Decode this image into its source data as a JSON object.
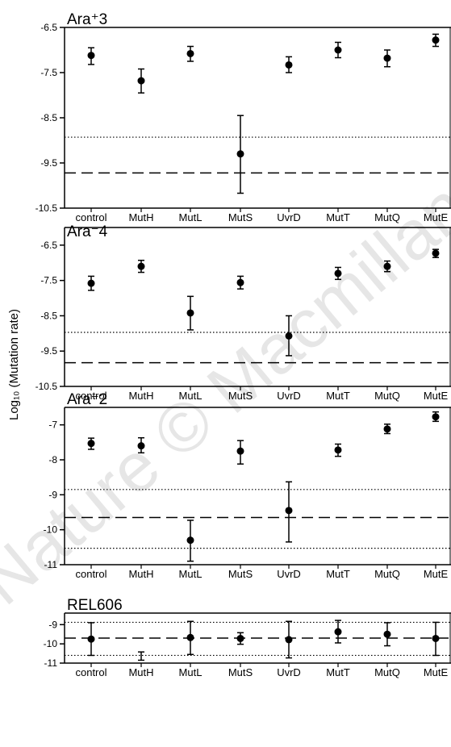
{
  "figure": {
    "ylabel": "Log₁₀ (Mutation rate)",
    "watermark": "Nature © Macmillan"
  },
  "chart_data": [
    {
      "type": "scatter",
      "title": "Ara⁺3",
      "categories": [
        "control",
        "MutH",
        "MutL",
        "MutS",
        "UvrD",
        "MutT",
        "MutQ",
        "MutE"
      ],
      "yticks": [
        -6.5,
        -7.5,
        -8.5,
        -9.5,
        -10.5
      ],
      "ytick_labels": [
        "-6.5",
        "-7.5",
        "-8.5",
        "-9.5",
        "-10.5"
      ],
      "ylim": [
        -10.5,
        -6.5
      ],
      "points": [
        {
          "y": -7.12,
          "low": -7.32,
          "high": -6.95
        },
        {
          "y": -7.68,
          "low": -7.95,
          "high": -7.42
        },
        {
          "y": -7.08,
          "low": -7.25,
          "high": -6.92
        },
        {
          "y": -9.3,
          "low": -10.17,
          "high": -8.45
        },
        {
          "y": -7.33,
          "low": -7.5,
          "high": -7.15
        },
        {
          "y": -7.0,
          "low": -7.17,
          "high": -6.83
        },
        {
          "y": -7.18,
          "low": -7.37,
          "high": -7.0
        },
        {
          "y": -6.78,
          "low": -6.92,
          "high": -6.65
        }
      ],
      "ref_lines": [
        {
          "style": "dotted",
          "y": -8.93
        },
        {
          "style": "dashed",
          "y": -9.72
        }
      ]
    },
    {
      "type": "scatter",
      "title": "Ara⁻4",
      "categories": [
        "control",
        "MutH",
        "MutL",
        "MutS",
        "UvrD",
        "MutT",
        "MutQ",
        "MutE"
      ],
      "yticks": [
        -6.5,
        -7.5,
        -8.5,
        -9.5,
        -10.5
      ],
      "ytick_labels": [
        "-6.5",
        "-7.5",
        "-8.5",
        "-9.5",
        "-10.5"
      ],
      "ylim": [
        -10.5,
        -6.0
      ],
      "points": [
        {
          "y": -7.58,
          "low": -7.78,
          "high": -7.38
        },
        {
          "y": -7.1,
          "low": -7.27,
          "high": -6.93
        },
        {
          "y": -8.42,
          "low": -8.9,
          "high": -7.95
        },
        {
          "y": -7.56,
          "low": -7.74,
          "high": -7.38
        },
        {
          "y": -9.07,
          "low": -9.63,
          "high": -8.5
        },
        {
          "y": -7.3,
          "low": -7.47,
          "high": -7.13
        },
        {
          "y": -7.1,
          "low": -7.25,
          "high": -6.95
        },
        {
          "y": -6.73,
          "low": -6.85,
          "high": -6.62
        }
      ],
      "ref_lines": [
        {
          "style": "dotted",
          "y": -8.97
        },
        {
          "style": "dashed",
          "y": -9.83
        }
      ]
    },
    {
      "type": "scatter",
      "title": "Ara⁻2",
      "categories": [
        "control",
        "MutH",
        "MutL",
        "MutS",
        "UvrD",
        "MutT",
        "MutQ",
        "MutE"
      ],
      "yticks": [
        -7,
        -8,
        -9,
        -10,
        -11
      ],
      "ytick_labels": [
        "-7",
        "-8",
        "-9",
        "-10",
        "-11"
      ],
      "ylim": [
        -11,
        -6.5
      ],
      "points": [
        {
          "y": -7.53,
          "low": -7.7,
          "high": -7.38
        },
        {
          "y": -7.6,
          "low": -7.8,
          "high": -7.37
        },
        {
          "y": -10.3,
          "low": -10.9,
          "high": -9.73
        },
        {
          "y": -7.75,
          "low": -8.12,
          "high": -7.45
        },
        {
          "y": -9.45,
          "low": -10.35,
          "high": -8.63
        },
        {
          "y": -7.72,
          "low": -7.9,
          "high": -7.55
        },
        {
          "y": -7.12,
          "low": -7.25,
          "high": -6.98
        },
        {
          "y": -6.77,
          "low": -6.9,
          "high": -6.63
        }
      ],
      "ref_lines": [
        {
          "style": "dotted",
          "y": -8.85
        },
        {
          "style": "dashed",
          "y": -9.65
        },
        {
          "style": "dotted",
          "y": -10.53
        }
      ]
    },
    {
      "type": "scatter",
      "title": "REL606",
      "categories": [
        "control",
        "MutH",
        "MutL",
        "MutS",
        "UvrD",
        "MutT",
        "MutQ",
        "MutE"
      ],
      "yticks": [
        -9,
        -10,
        -11
      ],
      "ytick_labels": [
        "-9",
        "-10",
        "-11"
      ],
      "ylim": [
        -11,
        -8.4
      ],
      "points": [
        {
          "y": -9.75,
          "low": -10.6,
          "high": -8.9
        },
        {
          "y": null,
          "low": -10.85,
          "high": -10.42
        },
        {
          "y": -9.67,
          "low": -10.55,
          "high": -8.83
        },
        {
          "y": -9.72,
          "low": -10.02,
          "high": -9.42
        },
        {
          "y": -9.78,
          "low": -10.73,
          "high": -8.83
        },
        {
          "y": -9.37,
          "low": -9.95,
          "high": -8.78
        },
        {
          "y": -9.5,
          "low": -10.1,
          "high": -8.9
        },
        {
          "y": -9.72,
          "low": -10.6,
          "high": -8.88
        }
      ],
      "ref_lines": [
        {
          "style": "dotted",
          "y": -8.88
        },
        {
          "style": "dashed",
          "y": -9.7
        },
        {
          "style": "dotted",
          "y": -10.6
        }
      ]
    }
  ]
}
